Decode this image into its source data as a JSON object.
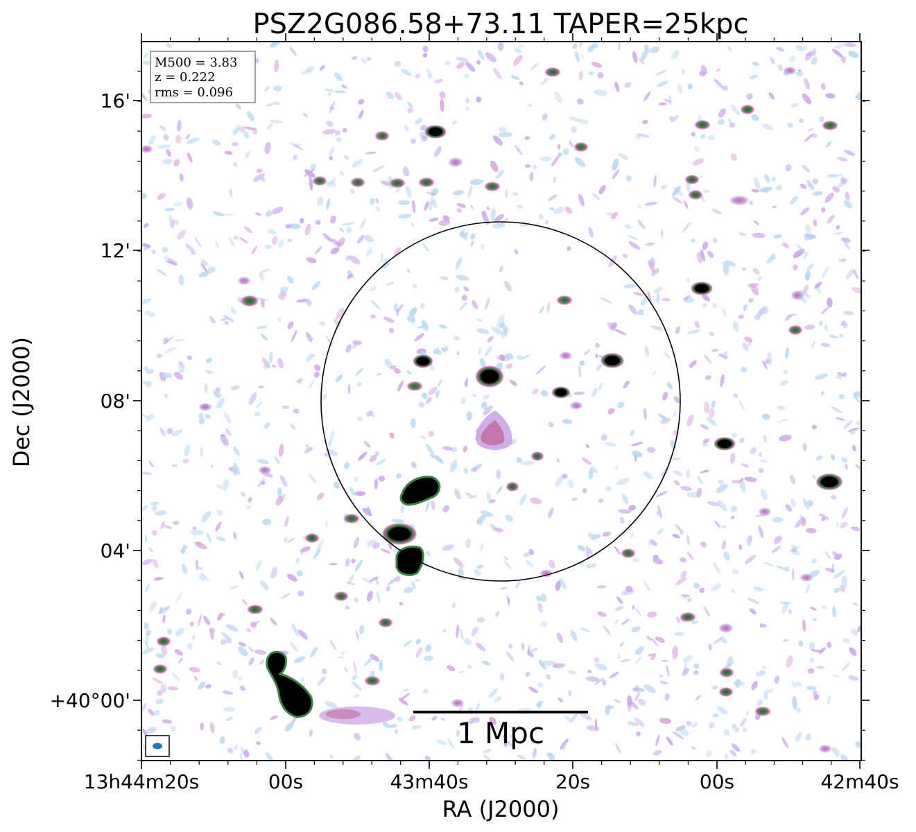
{
  "chart_data": {
    "type": "heatmap",
    "title": "PSZ2G086.58+73.11 TAPER=25kpc",
    "xlabel": "RA (J2000)",
    "ylabel": "Dec (J2000)",
    "x_tick_labels": [
      "13h44m20s",
      "00s",
      "43m40s",
      "20s",
      "00s",
      "42m40s"
    ],
    "y_tick_labels": [
      "+40°00'",
      "04'",
      "08'",
      "12'",
      "16'"
    ],
    "info_box": [
      "M500 = 3.83",
      "z = 0.222",
      "rms = 0.096"
    ],
    "scale_bar_label": "1 Mpc",
    "colormap": [
      "#ffffff",
      "#bcd7ef",
      "#c9a6e6",
      "#c0699e",
      "#3f7d49",
      "#000000"
    ],
    "overlay": "circle centered on cluster",
    "beam_marker_color": "#1f77b4",
    "grid": false,
    "legend": "none"
  }
}
